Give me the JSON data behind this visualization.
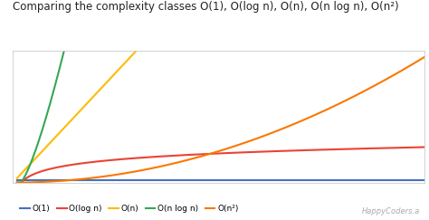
{
  "title_display": "Comparing the complexity classes O(1), O(log n), O(n), O(n log n), O(n²)",
  "n_max": 50,
  "line_colors": {
    "O(1)": "#4472c4",
    "O(log n)": "#ea4335",
    "O(n)": "#fbbc04",
    "O(n log n)": "#34a853",
    "O(n^2)": "#fa7800"
  },
  "legend_labels": [
    "O(1)",
    "O(log n)",
    "O(n)",
    "O(n log n)",
    "O(n²)"
  ],
  "background_color": "#ffffff",
  "grid_color": "#e0e0e0",
  "figsize": [
    4.74,
    2.43
  ],
  "dpi": 100
}
